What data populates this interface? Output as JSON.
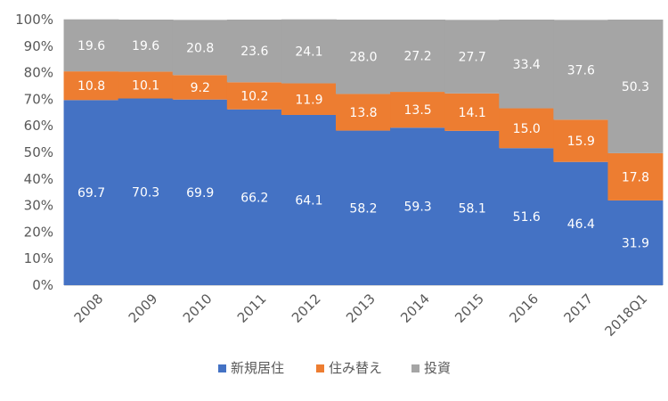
{
  "chart_data": {
    "type": "bar",
    "stacked": true,
    "percent_axis": true,
    "categories": [
      "2008",
      "2009",
      "2010",
      "2011",
      "2012",
      "2013",
      "2014",
      "2015",
      "2016",
      "2017",
      "2018Q1"
    ],
    "series": [
      {
        "name": "新規居住",
        "color": "#4472C4",
        "values": [
          69.7,
          70.3,
          69.9,
          66.2,
          64.1,
          58.2,
          59.3,
          58.1,
          51.6,
          46.4,
          31.9
        ]
      },
      {
        "name": "住み替え",
        "color": "#ED7D31",
        "values": [
          10.8,
          10.1,
          9.2,
          10.2,
          11.9,
          13.8,
          13.5,
          14.1,
          15.0,
          15.9,
          17.8
        ]
      },
      {
        "name": "投資",
        "color": "#A5A5A5",
        "values": [
          19.6,
          19.6,
          20.8,
          23.6,
          24.1,
          28.0,
          27.2,
          27.7,
          33.4,
          37.6,
          50.3
        ]
      }
    ],
    "ylim": [
      0,
      100
    ],
    "yticks": [
      "0%",
      "10%",
      "20%",
      "30%",
      "40%",
      "50%",
      "60%",
      "70%",
      "80%",
      "90%",
      "100%"
    ],
    "grid": false,
    "legend_position": "bottom",
    "title": "",
    "xlabel": "",
    "ylabel": ""
  }
}
